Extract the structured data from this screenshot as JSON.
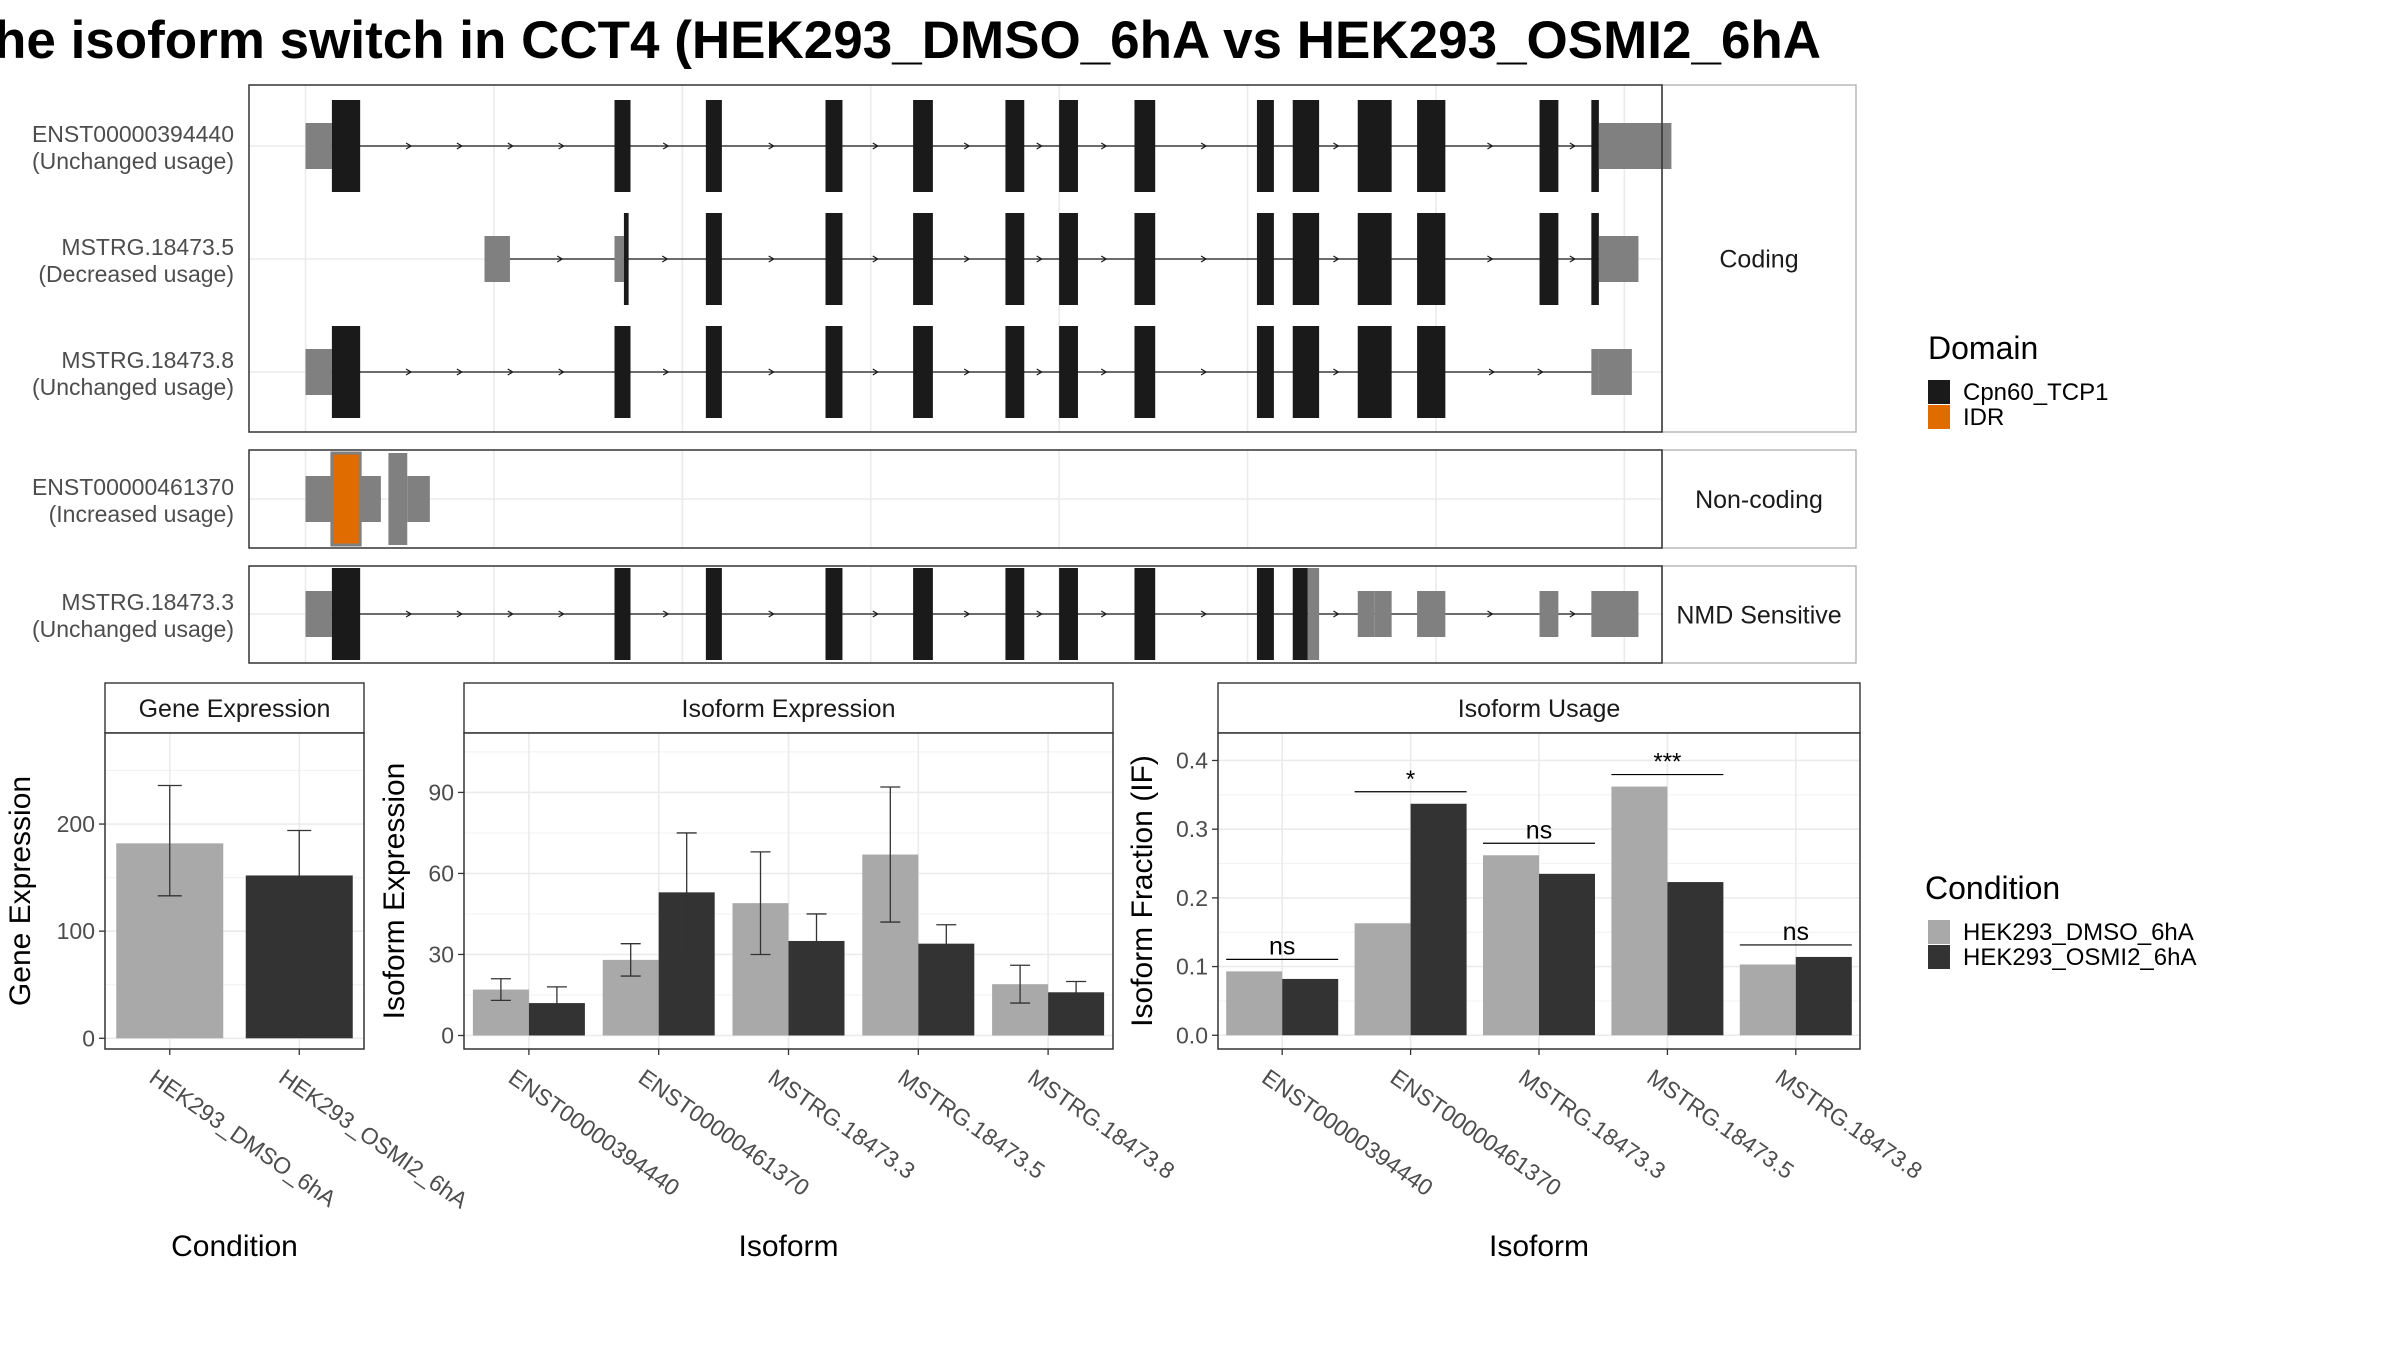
{
  "title": "he isoform switch in CCT4 (HEK293_DMSO_6hA vs HEK293_OSMI2_6hA",
  "colors": {
    "cpn60": "#1a1a1a",
    "idr": "#e06c00",
    "utr": "#808080",
    "dmso": "#a9a9a9",
    "osmi": "#333333",
    "grid": "#ebebeb",
    "strip": "#ffffff",
    "axis_text": "#4d4d4d"
  },
  "chart_data": [
    {
      "type": "gene_structure",
      "panel": "isoform-structures",
      "x_range": [
        0,
        1500
      ],
      "gridlines": [
        60,
        260,
        460,
        660,
        860,
        1060,
        1260,
        1460
      ],
      "groups": [
        {
          "label": "Coding",
          "transcripts": [
            0,
            1,
            2
          ]
        },
        {
          "label": "Non-coding",
          "transcripts": [
            3
          ]
        },
        {
          "label": "NMD Sensitive",
          "transcripts": [
            4
          ]
        }
      ],
      "transcripts": [
        {
          "id": "ENST00000394440",
          "status": "(Unchanged usage)",
          "line": [
            60,
            1440
          ],
          "exons": [
            {
              "s": 60,
              "e": 88,
              "t": "u"
            },
            {
              "s": 88,
              "e": 118,
              "t": "c"
            },
            {
              "s": 388,
              "e": 405,
              "t": "c"
            },
            {
              "s": 485,
              "e": 502,
              "t": "c"
            },
            {
              "s": 612,
              "e": 630,
              "t": "c"
            },
            {
              "s": 705,
              "e": 726,
              "t": "c"
            },
            {
              "s": 803,
              "e": 823,
              "t": "c"
            },
            {
              "s": 860,
              "e": 880,
              "t": "c"
            },
            {
              "s": 940,
              "e": 962,
              "t": "c"
            },
            {
              "s": 1070,
              "e": 1088,
              "t": "c"
            },
            {
              "s": 1108,
              "e": 1136,
              "t": "c"
            },
            {
              "s": 1177,
              "e": 1213,
              "t": "c"
            },
            {
              "s": 1240,
              "e": 1270,
              "t": "c"
            },
            {
              "s": 1370,
              "e": 1390,
              "t": "c"
            },
            {
              "s": 1425,
              "e": 1433,
              "t": "c"
            },
            {
              "s": 1433,
              "e": 1510,
              "t": "u"
            }
          ]
        },
        {
          "id": "MSTRG.18473.5",
          "status": "(Decreased usage)",
          "line": [
            250,
            1440
          ],
          "exons": [
            {
              "s": 250,
              "e": 277,
              "t": "u"
            },
            {
              "s": 388,
              "e": 398,
              "t": "u"
            },
            {
              "s": 398,
              "e": 403,
              "t": "c"
            },
            {
              "s": 485,
              "e": 502,
              "t": "c"
            },
            {
              "s": 612,
              "e": 630,
              "t": "c"
            },
            {
              "s": 705,
              "e": 726,
              "t": "c"
            },
            {
              "s": 803,
              "e": 823,
              "t": "c"
            },
            {
              "s": 860,
              "e": 880,
              "t": "c"
            },
            {
              "s": 940,
              "e": 962,
              "t": "c"
            },
            {
              "s": 1070,
              "e": 1088,
              "t": "c"
            },
            {
              "s": 1108,
              "e": 1136,
              "t": "c"
            },
            {
              "s": 1177,
              "e": 1213,
              "t": "c"
            },
            {
              "s": 1240,
              "e": 1270,
              "t": "c"
            },
            {
              "s": 1370,
              "e": 1390,
              "t": "c"
            },
            {
              "s": 1425,
              "e": 1433,
              "t": "c"
            },
            {
              "s": 1433,
              "e": 1475,
              "t": "u"
            }
          ]
        },
        {
          "id": "MSTRG.18473.8",
          "status": "(Unchanged usage)",
          "line": [
            60,
            1440
          ],
          "exons": [
            {
              "s": 60,
              "e": 88,
              "t": "u"
            },
            {
              "s": 88,
              "e": 118,
              "t": "c"
            },
            {
              "s": 388,
              "e": 405,
              "t": "c"
            },
            {
              "s": 485,
              "e": 502,
              "t": "c"
            },
            {
              "s": 612,
              "e": 630,
              "t": "c"
            },
            {
              "s": 705,
              "e": 726,
              "t": "c"
            },
            {
              "s": 803,
              "e": 823,
              "t": "c"
            },
            {
              "s": 860,
              "e": 880,
              "t": "c"
            },
            {
              "s": 940,
              "e": 962,
              "t": "c"
            },
            {
              "s": 1070,
              "e": 1088,
              "t": "c"
            },
            {
              "s": 1108,
              "e": 1136,
              "t": "c"
            },
            {
              "s": 1177,
              "e": 1213,
              "t": "c"
            },
            {
              "s": 1240,
              "e": 1270,
              "t": "c"
            },
            {
              "s": 1425,
              "e": 1433,
              "t": "u"
            },
            {
              "s": 1433,
              "e": 1468,
              "t": "u"
            }
          ]
        },
        {
          "id": "ENST00000461370",
          "status": "(Increased usage)",
          "line": [
            60,
            140
          ],
          "exons": [
            {
              "s": 60,
              "e": 88,
              "t": "u"
            },
            {
              "s": 88,
              "e": 118,
              "t": "i"
            },
            {
              "s": 118,
              "e": 140,
              "t": "u_thin"
            },
            {
              "s": 148,
              "e": 168,
              "t": "u"
            },
            {
              "s": 168,
              "e": 192,
              "t": "u_thin"
            }
          ]
        },
        {
          "id": "MSTRG.18473.3",
          "status": "(Unchanged usage)",
          "line": [
            60,
            1440
          ],
          "exons": [
            {
              "s": 60,
              "e": 88,
              "t": "u"
            },
            {
              "s": 88,
              "e": 118,
              "t": "c"
            },
            {
              "s": 388,
              "e": 405,
              "t": "c"
            },
            {
              "s": 485,
              "e": 502,
              "t": "c"
            },
            {
              "s": 612,
              "e": 630,
              "t": "c"
            },
            {
              "s": 705,
              "e": 726,
              "t": "c"
            },
            {
              "s": 803,
              "e": 823,
              "t": "c"
            },
            {
              "s": 860,
              "e": 880,
              "t": "c"
            },
            {
              "s": 940,
              "e": 962,
              "t": "c"
            },
            {
              "s": 1070,
              "e": 1088,
              "t": "c"
            },
            {
              "s": 1108,
              "e": 1124,
              "t": "c"
            },
            {
              "s": 1124,
              "e": 1136,
              "t": "u"
            },
            {
              "s": 1177,
              "e": 1195,
              "t": "u"
            },
            {
              "s": 1195,
              "e": 1213,
              "t": "u_thin"
            },
            {
              "s": 1240,
              "e": 1270,
              "t": "u"
            },
            {
              "s": 1370,
              "e": 1390,
              "t": "u"
            },
            {
              "s": 1425,
              "e": 1475,
              "t": "u"
            }
          ]
        }
      ],
      "domain_legend": {
        "title": "Domain",
        "entries": [
          {
            "label": "Cpn60_TCP1",
            "color": "#1a1a1a"
          },
          {
            "label": "IDR",
            "color": "#e06c00"
          }
        ]
      }
    },
    {
      "type": "bar",
      "panel": "gene-expression",
      "strip": "Gene Expression",
      "xlabel": "Condition",
      "ylabel": "Gene Expression",
      "ylim": [
        -10,
        285
      ],
      "yticks": [
        0,
        100,
        200
      ],
      "categories": [
        "HEK293_DMSO_6hA",
        "HEK293_OSMI2_6hA"
      ],
      "values": [
        182,
        152
      ],
      "err_low": [
        133,
        112
      ],
      "err_high": [
        236,
        194
      ]
    },
    {
      "type": "bar",
      "panel": "isoform-expression",
      "strip": "Isoform Expression",
      "xlabel": "Isoform",
      "ylabel": "Isoform Expression",
      "ylim": [
        -5,
        112
      ],
      "yticks": [
        0,
        30,
        60,
        90
      ],
      "categories": [
        "ENST00000394440",
        "ENST00000461370",
        "MSTRG.18473.3",
        "MSTRG.18473.5",
        "MSTRG.18473.8"
      ],
      "series": [
        {
          "name": "HEK293_DMSO_6hA",
          "values": [
            17,
            28,
            49,
            67,
            19
          ],
          "err_low": [
            13,
            22,
            30,
            42,
            12
          ],
          "err_high": [
            21,
            34,
            68,
            92,
            26
          ]
        },
        {
          "name": "HEK293_OSMI2_6hA",
          "values": [
            12,
            53,
            35,
            34,
            16
          ],
          "err_low": [
            6,
            30,
            25,
            26,
            13
          ],
          "err_high": [
            18,
            75,
            45,
            41,
            20
          ]
        }
      ]
    },
    {
      "type": "bar",
      "panel": "isoform-usage",
      "strip": "Isoform Usage",
      "xlabel": "Isoform",
      "ylabel": "Isoform Fraction (IF)",
      "ylim": [
        -0.02,
        0.44
      ],
      "yticks": [
        0.0,
        0.1,
        0.2,
        0.3,
        0.4
      ],
      "ytick_labels": [
        "0.0",
        "0.1",
        "0.2",
        "0.3",
        "0.4"
      ],
      "categories": [
        "ENST00000394440",
        "ENST00000461370",
        "MSTRG.18473.3",
        "MSTRG.18473.5",
        "MSTRG.18473.8"
      ],
      "series": [
        {
          "name": "HEK293_DMSO_6hA",
          "values": [
            0.093,
            0.163,
            0.262,
            0.362,
            0.103
          ]
        },
        {
          "name": "HEK293_OSMI2_6hA",
          "values": [
            0.082,
            0.337,
            0.235,
            0.223,
            0.114
          ]
        }
      ],
      "significance": [
        "ns",
        "*",
        "ns",
        "***",
        "ns"
      ]
    }
  ],
  "condition_legend": {
    "title": "Condition",
    "entries": [
      {
        "label": "HEK293_DMSO_6hA",
        "color": "#a9a9a9"
      },
      {
        "label": "HEK293_OSMI2_6hA",
        "color": "#333333"
      }
    ]
  }
}
